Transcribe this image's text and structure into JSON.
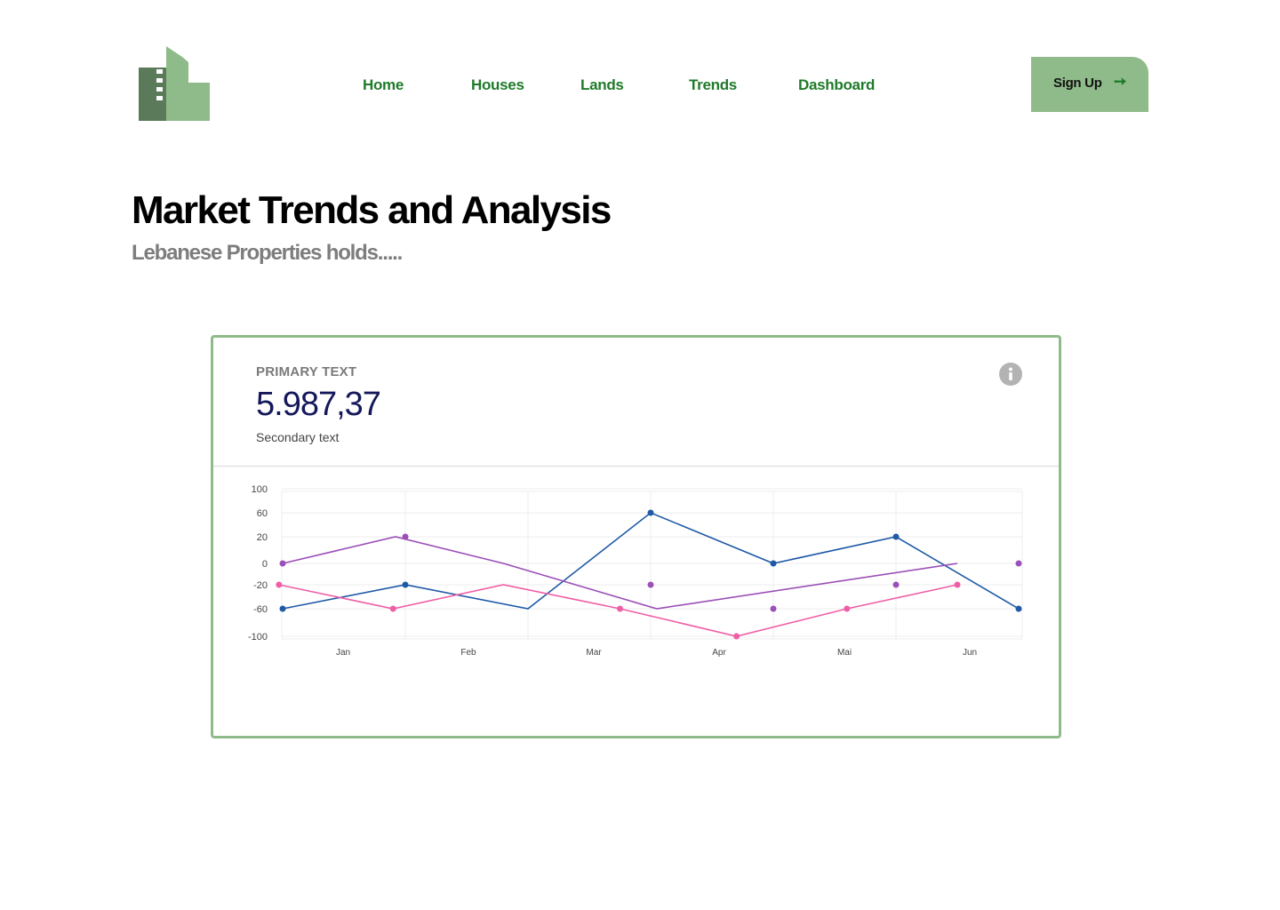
{
  "brand": {
    "logo_icon": "building-icon",
    "colors": {
      "dark": "#5a7a5a",
      "light": "#8fbb8a"
    }
  },
  "nav": {
    "items": [
      "Home",
      "Houses",
      "Lands",
      "Trends",
      "Dashboard"
    ],
    "color": "#1f7a2a"
  },
  "signup": {
    "label": "Sign Up",
    "icon": "arrow-right-icon",
    "arrow_glyph": "➙"
  },
  "header": {
    "title": "Market Trends and Analysis",
    "subtitle": "Lebanese Properties holds....."
  },
  "card": {
    "eyebrow": "PRIMARY TEXT",
    "value": "5.987,37",
    "secondary": "Secondary text",
    "info_icon": "info-icon"
  },
  "chart_data": {
    "type": "line",
    "categories": [
      "Jan",
      "Feb",
      "Mar",
      "Apr",
      "Mai",
      "Jun"
    ],
    "y_ticks": [
      100,
      60,
      20,
      0,
      -20,
      -60,
      -100
    ],
    "ylim": [
      -100,
      100
    ],
    "grid": true,
    "series": [
      {
        "color": "#1f5aa6",
        "x": [
          0,
          1,
          2,
          3,
          4,
          5,
          6
        ],
        "values": [
          -60,
          -20,
          -60,
          60,
          0,
          20,
          -60
        ],
        "markers": [
          true,
          true,
          false,
          true,
          true,
          true,
          true
        ]
      },
      {
        "color": "#9b4fb8",
        "x": [
          0,
          0.92,
          1.8,
          3.05,
          5.5
        ],
        "values": [
          0,
          20,
          0,
          -60,
          0
        ],
        "markers": [
          true,
          false,
          false,
          false,
          false
        ]
      },
      {
        "color": "#ef5fa7",
        "x": [
          -0.03,
          0.9,
          1.8,
          2.75,
          3.7,
          4.6,
          5.5
        ],
        "values": [
          -20,
          -60,
          -20,
          -60,
          -100,
          -60,
          -20
        ],
        "markers": [
          true,
          true,
          false,
          true,
          true,
          true,
          true
        ]
      }
    ],
    "extra_points": {
      "color": "#9b4fb8",
      "x": [
        1.0,
        3.0,
        4.0,
        5.0,
        6.0
      ],
      "values": [
        20,
        -20,
        -60,
        -20,
        0
      ]
    }
  }
}
